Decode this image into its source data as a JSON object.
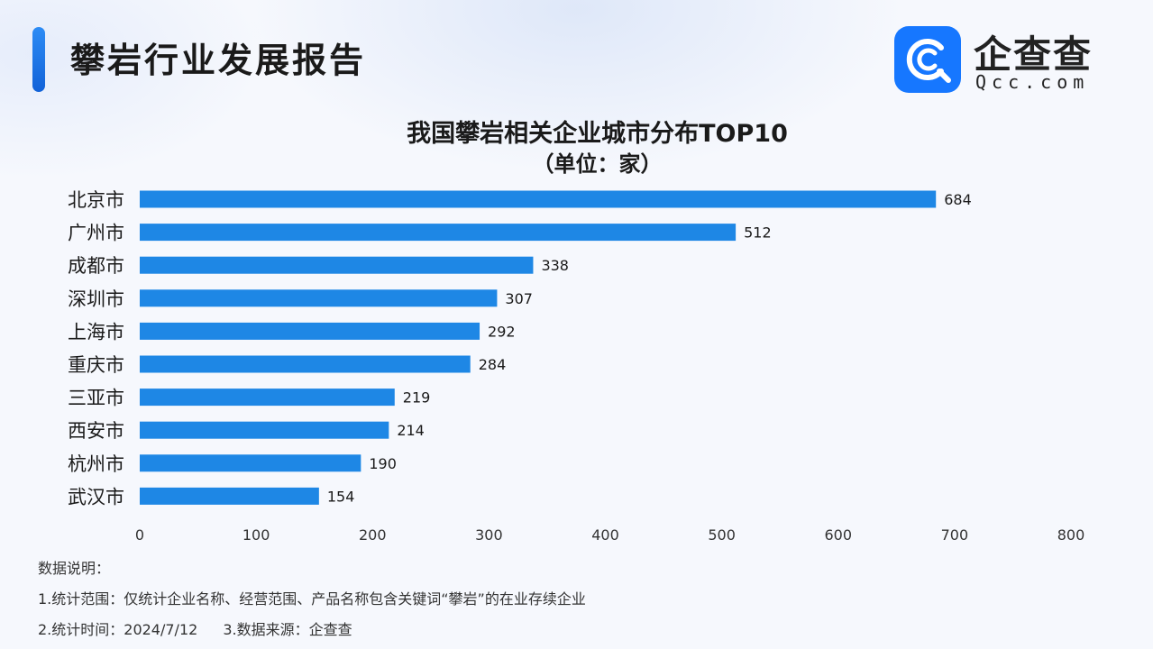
{
  "header": {
    "report_title": "攀岩行业发展报告",
    "logo_cn": "企查查",
    "logo_en": "Qcc.com"
  },
  "colors": {
    "accent": "#1677ff",
    "bar": "#1e87e5",
    "text": "#1a1a1a"
  },
  "chart_data": {
    "type": "bar",
    "orientation": "horizontal",
    "title": "我国攀岩相关企业城市分布TOP10",
    "subtitle": "（单位：家）",
    "categories": [
      "北京市",
      "广州市",
      "成都市",
      "深圳市",
      "上海市",
      "重庆市",
      "三亚市",
      "西安市",
      "杭州市",
      "武汉市"
    ],
    "values": [
      684,
      512,
      338,
      307,
      292,
      284,
      219,
      214,
      190,
      154
    ],
    "xlim": [
      0,
      800
    ],
    "xticks": [
      0,
      100,
      200,
      300,
      400,
      500,
      600,
      700,
      800
    ],
    "grid": false,
    "data_labels": true
  },
  "notes": {
    "heading": "数据说明：",
    "line1": "1.统计范围：仅统计企业名称、经营范围、产品名称包含关键词“攀岩”的在业存续企业",
    "line2a": "2.统计时间：2024/7/12",
    "line2b": "3.数据来源：企查查"
  }
}
